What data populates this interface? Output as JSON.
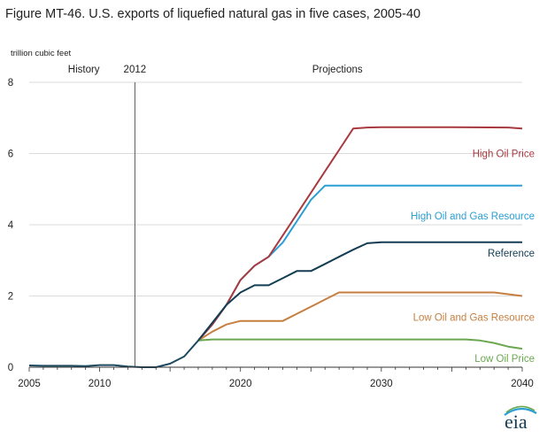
{
  "title": "Figure MT-46. U.S. exports of liquefied natural gas in five cases, 2005-40",
  "logo_text": "eia",
  "chart_data": {
    "type": "line",
    "title": "Figure MT-46. U.S. exports of liquefied natural gas in five cases, 2005-40",
    "ylabel": "trillion cubic feet",
    "xlabel": "",
    "xlim": [
      2005,
      2040
    ],
    "ylim": [
      0,
      8
    ],
    "x_ticks": [
      "2005",
      "2010",
      "2020",
      "2030",
      "2040"
    ],
    "y_ticks": [
      "0",
      "2",
      "4",
      "6",
      "8"
    ],
    "annotations": {
      "history": "History",
      "divider_year_label": "2012",
      "divider_year": 2012.5,
      "projections": "Projections"
    },
    "grid": "horizontal",
    "history_series": {
      "color": "#1d4a60",
      "points": [
        [
          2005,
          0.05
        ],
        [
          2006,
          0.04
        ],
        [
          2007,
          0.04
        ],
        [
          2008,
          0.04
        ],
        [
          2009,
          0.03
        ],
        [
          2010,
          0.06
        ],
        [
          2011,
          0.06
        ],
        [
          2012,
          0.02
        ],
        [
          2013,
          0.0
        ],
        [
          2014,
          0.0
        ],
        [
          2015,
          0.1
        ],
        [
          2016,
          0.3
        ],
        [
          2017,
          0.75
        ]
      ]
    },
    "series": [
      {
        "name": "High Oil Price",
        "color": "#a83a3f",
        "points": [
          [
            2017,
            0.75
          ],
          [
            2018,
            1.2
          ],
          [
            2019,
            1.75
          ],
          [
            2020,
            2.45
          ],
          [
            2021,
            2.85
          ],
          [
            2022,
            3.1
          ],
          [
            2023,
            3.7
          ],
          [
            2024,
            4.3
          ],
          [
            2025,
            4.9
          ],
          [
            2026,
            5.5
          ],
          [
            2027,
            6.1
          ],
          [
            2028,
            6.7
          ],
          [
            2029,
            6.73
          ],
          [
            2030,
            6.74
          ],
          [
            2035,
            6.74
          ],
          [
            2039,
            6.73
          ],
          [
            2040,
            6.7
          ]
        ]
      },
      {
        "name": "High Oil and Gas Resource",
        "color": "#2a9fd5",
        "points": [
          [
            2017,
            0.75
          ],
          [
            2018,
            1.2
          ],
          [
            2019,
            1.75
          ],
          [
            2020,
            2.45
          ],
          [
            2021,
            2.85
          ],
          [
            2022,
            3.1
          ],
          [
            2023,
            3.5
          ],
          [
            2024,
            4.1
          ],
          [
            2025,
            4.7
          ],
          [
            2026,
            5.1
          ],
          [
            2027,
            5.1
          ],
          [
            2030,
            5.1
          ],
          [
            2035,
            5.1
          ],
          [
            2040,
            5.1
          ]
        ]
      },
      {
        "name": "Reference",
        "color": "#143d54",
        "points": [
          [
            2017,
            0.75
          ],
          [
            2018,
            1.25
          ],
          [
            2019,
            1.75
          ],
          [
            2020,
            2.1
          ],
          [
            2021,
            2.3
          ],
          [
            2022,
            2.3
          ],
          [
            2023,
            2.5
          ],
          [
            2024,
            2.7
          ],
          [
            2025,
            2.7
          ],
          [
            2026,
            2.9
          ],
          [
            2027,
            3.1
          ],
          [
            2028,
            3.3
          ],
          [
            2029,
            3.48
          ],
          [
            2030,
            3.51
          ],
          [
            2035,
            3.51
          ],
          [
            2040,
            3.51
          ]
        ]
      },
      {
        "name": "Low Oil and Gas Resource",
        "color": "#c67f3f",
        "points": [
          [
            2017,
            0.75
          ],
          [
            2018,
            1.0
          ],
          [
            2019,
            1.2
          ],
          [
            2020,
            1.3
          ],
          [
            2021,
            1.3
          ],
          [
            2022,
            1.3
          ],
          [
            2023,
            1.3
          ],
          [
            2024,
            1.5
          ],
          [
            2025,
            1.7
          ],
          [
            2026,
            1.9
          ],
          [
            2027,
            2.1
          ],
          [
            2030,
            2.1
          ],
          [
            2035,
            2.1
          ],
          [
            2038,
            2.1
          ],
          [
            2040,
            2.0
          ]
        ]
      },
      {
        "name": "Low Oil Price",
        "color": "#6aa84f",
        "points": [
          [
            2017,
            0.75
          ],
          [
            2018,
            0.78
          ],
          [
            2020,
            0.78
          ],
          [
            2025,
            0.78
          ],
          [
            2030,
            0.78
          ],
          [
            2035,
            0.78
          ],
          [
            2036,
            0.78
          ],
          [
            2037,
            0.75
          ],
          [
            2038,
            0.68
          ],
          [
            2039,
            0.58
          ],
          [
            2040,
            0.52
          ]
        ]
      }
    ]
  }
}
